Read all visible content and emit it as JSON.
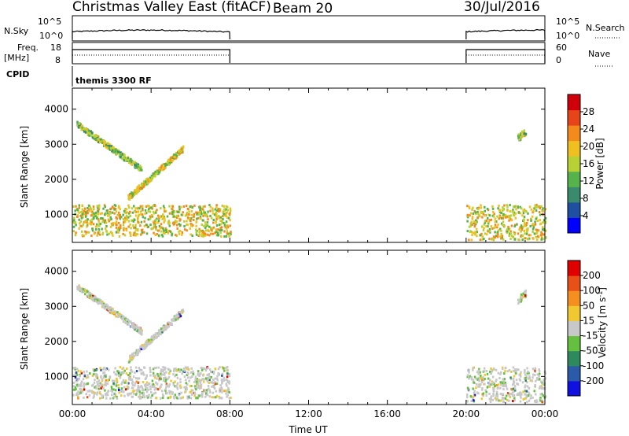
{
  "header": {
    "title": "Christmas Valley East (fitACF)",
    "beam": "Beam 20",
    "date": "30/Jul/2016"
  },
  "panels": {
    "nsky": {
      "label": "N.Sky",
      "ticks": [
        "10^5",
        "10^0"
      ],
      "right_ticks": [
        "10^5",
        "10^0"
      ],
      "right_label": "N.Search"
    },
    "freq": {
      "label_line1": "Freq.",
      "label_line2": "[MHz]",
      "ticks": [
        "18",
        "8"
      ],
      "right_ticks": [
        "60",
        "0"
      ],
      "right_label": "Nave"
    },
    "cpid": {
      "label": "CPID",
      "program": "themis 3300 RF"
    }
  },
  "colors": {
    "power_scale": [
      "#0000ff",
      "#1f4fa0",
      "#3a8a6e",
      "#56b24a",
      "#b8d234",
      "#f0c020",
      "#f58a1c",
      "#e8441a",
      "#d0000a"
    ],
    "velocity_scale": [
      "#1010e0",
      "#2a5aa8",
      "#2e8a5e",
      "#66c040",
      "#c8c8c8",
      "#f0c830",
      "#f59020",
      "#e85018",
      "#e00000"
    ]
  },
  "chart_data": [
    {
      "type": "heatmap",
      "name_in_figure": "power",
      "ylabel": "Slant Range [km]",
      "yticks": [
        1000,
        2000,
        3000,
        4000
      ],
      "ylim": [
        200,
        4600
      ],
      "xlim": [
        0,
        24
      ],
      "colorbar": {
        "label": "Power [dB]",
        "ticks": [
          4,
          8,
          12,
          16,
          20,
          24,
          28
        ],
        "range": [
          0,
          32
        ]
      },
      "active_intervals_hours": [
        [
          0,
          8
        ],
        [
          20,
          24
        ]
      ],
      "features": [
        {
          "t": [
            0.2,
            3.5
          ],
          "range_km": [
            3600,
            2300
          ],
          "value": 16
        },
        {
          "t": [
            2.8,
            5.6
          ],
          "range_km": [
            1500,
            2900
          ],
          "value": 18
        },
        {
          "t": [
            0,
            8
          ],
          "range_km": [
            400,
            1300
          ],
          "value": 20
        },
        {
          "t": [
            20,
            24
          ],
          "range_km": [
            300,
            1300
          ],
          "value": 18
        },
        {
          "t": [
            22.6,
            23.0
          ],
          "range_km": [
            3200,
            3400
          ],
          "value": 16
        }
      ]
    },
    {
      "type": "heatmap",
      "name_in_figure": "velocity",
      "ylabel": "Slant Range [km]",
      "xlabel": "Time UT",
      "yticks": [
        1000,
        2000,
        3000,
        4000
      ],
      "ylim": [
        200,
        4600
      ],
      "xticks": [
        "00:00",
        "04:00",
        "08:00",
        "12:00",
        "16:00",
        "20:00",
        "00:00"
      ],
      "xlim": [
        0,
        24
      ],
      "colorbar": {
        "label": "Velocity [m s^-1]",
        "ticks": [
          "200",
          "100",
          "50",
          "15",
          "-15",
          "-50",
          "-100",
          "-200"
        ]
      },
      "active_intervals_hours": [
        [
          0,
          8
        ],
        [
          20,
          24
        ]
      ]
    }
  ]
}
